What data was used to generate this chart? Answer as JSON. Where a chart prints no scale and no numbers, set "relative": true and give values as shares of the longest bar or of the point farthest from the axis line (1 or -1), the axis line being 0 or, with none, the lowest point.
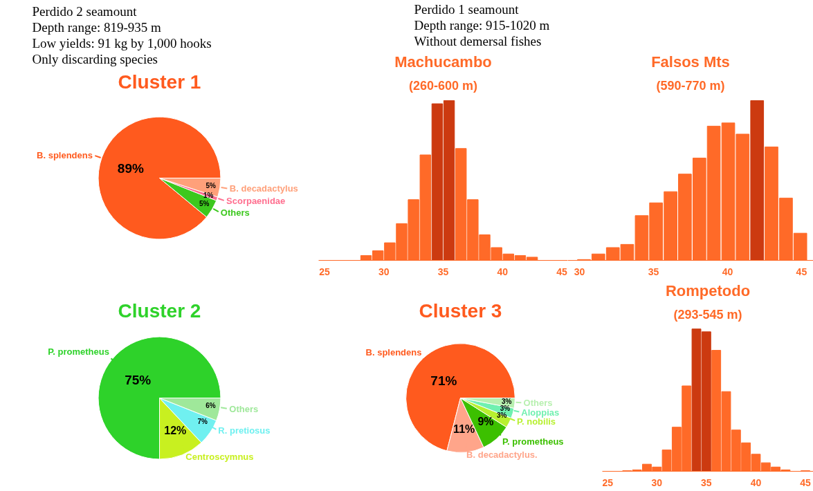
{
  "chart_data": [
    {
      "type": "pie",
      "title": "Cluster 1",
      "annotations": [
        "Perdido 2 seamount",
        "Depth range: 819-935 m",
        "Low yields: 91 kg by 1,000 hooks",
        "Only discarding species"
      ],
      "categories": [
        "B. splendens",
        "Others",
        "Scorpaenidae",
        "B. decadactylus"
      ],
      "values": [
        89,
        5,
        1,
        5
      ],
      "value_labels": [
        "89%",
        "5%",
        "1%",
        "5%"
      ],
      "colors": [
        "#ff5a1e",
        "#3cc81e",
        "#ff6f8f",
        "#ffa07a"
      ]
    },
    {
      "type": "bar",
      "title": "Machucambo",
      "subtitle": "(260-600 m)",
      "annotations": [
        "Perdido 1 seamount",
        "Depth range: 915-1020 m",
        "Without demersal fishes"
      ],
      "relative": true,
      "x": [
        25.5,
        26.5,
        27.5,
        28.5,
        29.5,
        30.5,
        31.5,
        32.5,
        33.5,
        34.5,
        35.5,
        36.5,
        37.5,
        38.5,
        39.5,
        40.5,
        41.5,
        42.5,
        43.5,
        44.5
      ],
      "values": [
        0,
        0,
        0,
        0.03,
        0.06,
        0.11,
        0.23,
        0.38,
        0.66,
        0.98,
        1,
        0.7,
        0.38,
        0.16,
        0.08,
        0.04,
        0.03,
        0.02,
        0,
        0
      ],
      "colors": [
        "#ff6a28",
        "#ff6a28",
        "#ff6a28",
        "#ff6a28",
        "#ff6a28",
        "#ff6a28",
        "#ff6a28",
        "#ff6a28",
        "#ff6a28",
        "#cc3a10",
        "#cc3a10",
        "#ff6a28",
        "#ff6a28",
        "#ff6a28",
        "#ff6a28",
        "#ff6a28",
        "#ff6a28",
        "#ff6a28",
        "#ff6a28",
        "#ff6a28"
      ],
      "xlim": [
        24.5,
        45.5
      ],
      "xticks": [
        25,
        30,
        35,
        40,
        45
      ]
    },
    {
      "type": "bar",
      "title": "Falsos Mts",
      "subtitle": "(590-770 m)",
      "relative": true,
      "x": [
        30.3,
        31.27,
        32.25,
        33.22,
        34.2,
        35.17,
        36.15,
        37.12,
        38.1,
        39.07,
        40.05,
        41.02,
        42.0,
        42.97,
        43.95,
        44.92
      ],
      "values": [
        0.005,
        0.04,
        0.08,
        0.1,
        0.28,
        0.36,
        0.43,
        0.54,
        0.64,
        0.84,
        0.86,
        0.79,
        1,
        0.71,
        0.39,
        0.17
      ],
      "colors": [
        "#ff6a28",
        "#ff6a28",
        "#ff6a28",
        "#ff6a28",
        "#ff6a28",
        "#ff6a28",
        "#ff6a28",
        "#ff6a28",
        "#ff6a28",
        "#ff6a28",
        "#ff6a28",
        "#ff6a28",
        "#cc3a10",
        "#ff6a28",
        "#ff6a28",
        "#ff6a28"
      ],
      "xlim": [
        29.2,
        45.8
      ],
      "xticks": [
        30,
        35,
        40,
        45
      ]
    },
    {
      "type": "pie",
      "title": "Cluster 2",
      "categories": [
        "P. prometheus",
        "Centroscymnus",
        "R. pretiosus",
        "Others"
      ],
      "values": [
        75,
        12,
        7,
        6
      ],
      "value_labels": [
        "75%",
        "12%",
        "7%",
        "6%"
      ],
      "colors": [
        "#2ed22a",
        "#c8f020",
        "#70f0f0",
        "#9fe89a"
      ]
    },
    {
      "type": "pie",
      "title": "Cluster 3",
      "categories": [
        "B. splendens",
        "B. decadactylus.",
        "P. prometheus",
        "P. nobilis",
        "Aloppias",
        "Others"
      ],
      "values": [
        71,
        11,
        9,
        3,
        3,
        3
      ],
      "value_labels": [
        "71%",
        "11%",
        "9%",
        "3%",
        "3%",
        "3%"
      ],
      "colors": [
        "#ff5a1e",
        "#ffa58a",
        "#3cc000",
        "#b8f030",
        "#70f0b0",
        "#b8f0b0"
      ]
    },
    {
      "type": "bar",
      "title": "Rompetodo",
      "subtitle": "(293-545 m)",
      "relative": true,
      "x": [
        27,
        28,
        29,
        30,
        31,
        32,
        33,
        34,
        35,
        36,
        37,
        38,
        39,
        40,
        41,
        42,
        43,
        44,
        45
      ],
      "values": [
        0.004,
        0.01,
        0.05,
        0.03,
        0.15,
        0.31,
        0.6,
        1,
        0.98,
        0.85,
        0.56,
        0.29,
        0.2,
        0.12,
        0.06,
        0.03,
        0.01,
        0,
        0.004
      ],
      "colors": [
        "#ff6a28",
        "#ff6a28",
        "#ff6a28",
        "#ff6a28",
        "#ff6a28",
        "#ff6a28",
        "#ff6a28",
        "#cc3a10",
        "#cc3a10",
        "#ff6a28",
        "#ff6a28",
        "#ff6a28",
        "#ff6a28",
        "#ff6a28",
        "#ff6a28",
        "#ff6a28",
        "#ff6a28",
        "#ff6a28",
        "#ff6a28"
      ],
      "xlim": [
        24.5,
        45.8
      ],
      "xticks": [
        25,
        30,
        35,
        40,
        45
      ]
    }
  ]
}
